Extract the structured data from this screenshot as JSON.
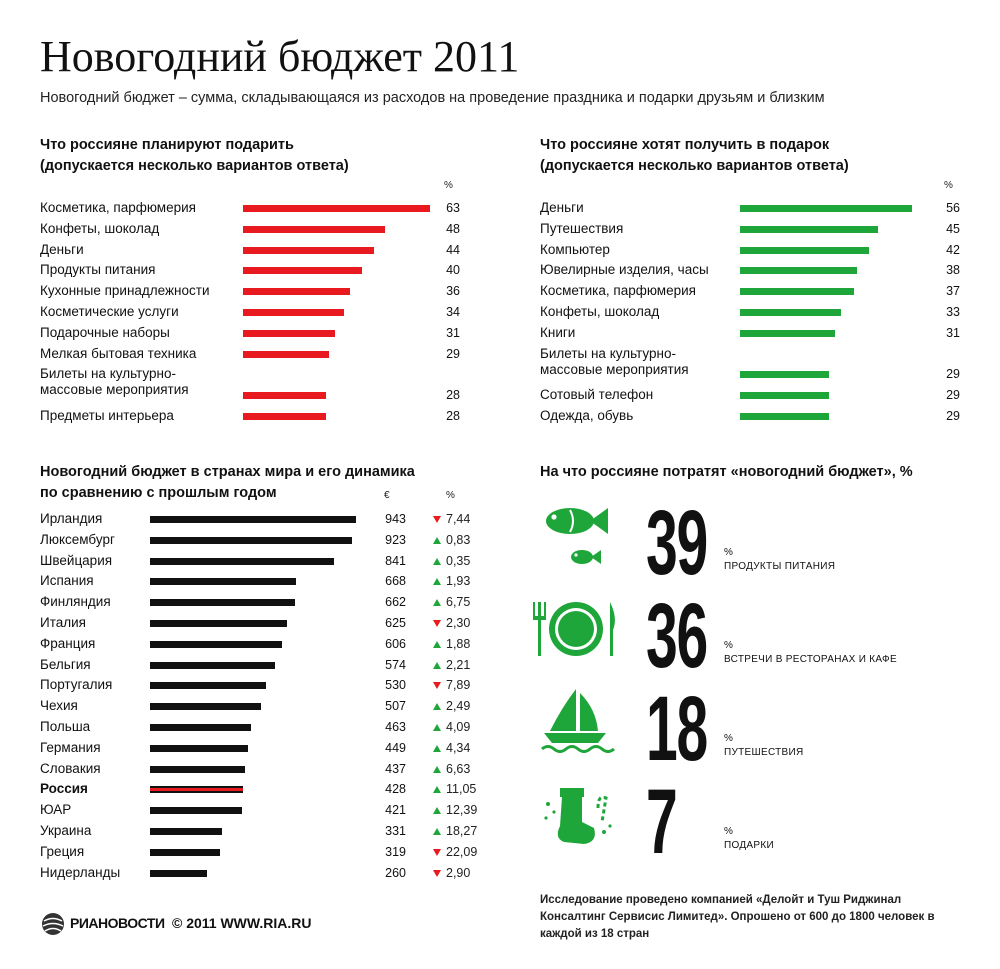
{
  "header": {
    "title": "Новогодний бюджет 2011",
    "subtitle": "Новогодний бюджет – сумма, складывающаяся из расходов на проведение праздника и подарки друзьям и близким"
  },
  "colors": {
    "red": "#e8191f",
    "green": "#1fa63a",
    "black": "#111111"
  },
  "chart_data": [
    {
      "type": "bar",
      "title_line1": "Что россияне планируют подарить",
      "title_line2": "(допускается несколько вариантов ответа)",
      "unit": "%",
      "categories": [
        "Косметика, парфюмерия",
        "Конфеты, шоколад",
        "Деньги",
        "Продукты питания",
        "Кухонные принадлежности",
        "Косметические услуги",
        "Подарочные наборы",
        "Мелкая бытовая техника",
        "Билеты на культурно-массовые мероприятия",
        "Предметы интерьера"
      ],
      "label_lines": [
        [
          "Косметика, парфюмерия"
        ],
        [
          "Конфеты, шоколад"
        ],
        [
          "Деньги"
        ],
        [
          "Продукты питания"
        ],
        [
          "Кухонные принадлежности"
        ],
        [
          "Косметические услуги"
        ],
        [
          "Подарочные наборы"
        ],
        [
          "Мелкая бытовая техника"
        ],
        [
          "Билеты на культурно-",
          "массовые мероприятия"
        ],
        [
          "Предметы интерьера"
        ]
      ],
      "values": [
        63,
        48,
        44,
        40,
        36,
        34,
        31,
        29,
        28,
        28
      ]
    },
    {
      "type": "bar",
      "title_line1": "Что россияне хотят получить в подарок",
      "title_line2": "(допускается несколько вариантов ответа)",
      "unit": "%",
      "categories": [
        "Деньги",
        "Путешествия",
        "Компьютер",
        "Ювелирные изделия, часы",
        "Косметика, парфюмерия",
        "Конфеты, шоколад",
        "Книги",
        "Билеты на культурно-массовые мероприятия",
        "Сотовый телефон",
        "Одежда, обувь"
      ],
      "label_lines": [
        [
          "Деньги"
        ],
        [
          "Путешествия"
        ],
        [
          "Компьютер"
        ],
        [
          "Ювелирные изделия, часы"
        ],
        [
          "Косметика, парфюмерия"
        ],
        [
          "Конфеты, шоколад"
        ],
        [
          "Книги"
        ],
        [
          "Билеты на культурно-",
          "массовые мероприятия"
        ],
        [
          "Сотовый телефон"
        ],
        [
          "Одежда, обувь"
        ]
      ],
      "values": [
        56,
        45,
        42,
        38,
        37,
        33,
        31,
        29,
        29,
        29
      ]
    },
    {
      "type": "bar",
      "title_line1": "Новогодний бюджет в странах мира и его динамика",
      "title_line2": "по сравнению с прошлым годом",
      "unit_value": "€",
      "unit_change": "%",
      "highlight": "Россия",
      "categories": [
        "Ирландия",
        "Люксембург",
        "Швейцария",
        "Испания",
        "Финляндия",
        "Италия",
        "Франция",
        "Бельгия",
        "Португалия",
        "Чехия",
        "Польша",
        "Германия",
        "Словакия",
        "Россия",
        "ЮАР",
        "Украина",
        "Греция",
        "Нидерланды"
      ],
      "values": [
        943,
        923,
        841,
        668,
        662,
        625,
        606,
        574,
        530,
        507,
        463,
        449,
        437,
        428,
        421,
        331,
        319,
        260
      ],
      "change_text": [
        "7,44",
        "0,83",
        "0,35",
        "1,93",
        "6,75",
        "2,30",
        "1,88",
        "2,21",
        "7,89",
        "2,49",
        "4,09",
        "4,34",
        "6,63",
        "11,05",
        "12,39",
        "18,27",
        "22,09",
        "2,90"
      ],
      "change_dir": [
        "down",
        "up",
        "up",
        "up",
        "up",
        "down",
        "up",
        "up",
        "down",
        "up",
        "up",
        "up",
        "up",
        "up",
        "up",
        "up",
        "down",
        "down"
      ]
    }
  ],
  "spending": {
    "title": "На что россияне потратят «новогодний бюджет», %",
    "items": [
      {
        "value": "39",
        "pct": "%",
        "label": "Продукты питания",
        "icon": "fish-icon"
      },
      {
        "value": "36",
        "pct": "%",
        "label": "Встречи в ресторанах и кафе",
        "icon": "plate-cutlery-icon"
      },
      {
        "value": "18",
        "pct": "%",
        "label": "Путешествия",
        "icon": "sailboat-icon"
      },
      {
        "value": "7",
        "pct": "%",
        "label": "Подарки",
        "icon": "christmas-stocking-icon"
      }
    ]
  },
  "footnote": "Исследование проведено компанией «Делойт и Туш Риджинал Консалтинг Сервисис Лимитед». Опрошено от 600 до 1800 человек в каждой из 18 стран",
  "logo": {
    "brand": "РИАНОВОСТИ",
    "copyright": "© 2011 WWW.RIA.RU"
  }
}
